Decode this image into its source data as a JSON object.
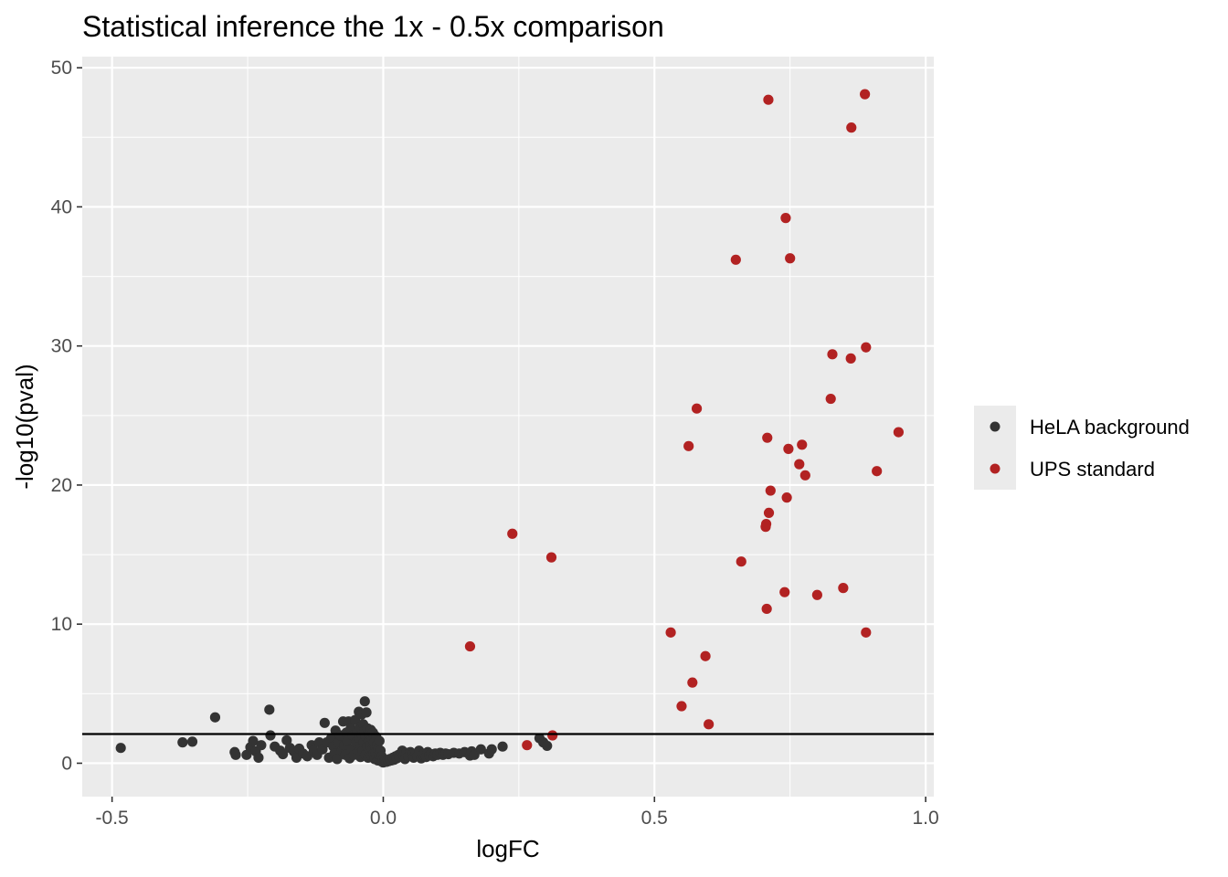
{
  "chart_data": {
    "type": "scatter",
    "title": "Statistical inference the 1x - 0.5x comparison",
    "xlabel": "logFC",
    "ylabel": "-log10(pval)",
    "xlim": [
      -0.555,
      1.015
    ],
    "ylim": [
      -2.4,
      50.8
    ],
    "x_ticks": [
      -0.5,
      0.0,
      0.5,
      1.0
    ],
    "x_tick_labels": [
      "-0.5",
      "0.0",
      "0.5",
      "1.0"
    ],
    "y_ticks": [
      0,
      10,
      20,
      30,
      40,
      50
    ],
    "y_tick_labels": [
      "0",
      "10",
      "20",
      "30",
      "40",
      "50"
    ],
    "grid": true,
    "panel_background": "#ebebeb",
    "legend_position": "right",
    "hline": 2.1,
    "series": [
      {
        "name": "HeLA background",
        "color": "#333333",
        "points": [
          [
            -0.484,
            1.1
          ],
          [
            -0.37,
            1.5
          ],
          [
            -0.352,
            1.55
          ],
          [
            -0.31,
            3.3
          ],
          [
            -0.274,
            0.8
          ],
          [
            -0.272,
            0.6
          ],
          [
            -0.252,
            0.6
          ],
          [
            -0.245,
            1.15
          ],
          [
            -0.24,
            1.6
          ],
          [
            -0.235,
            0.85
          ],
          [
            -0.23,
            0.4
          ],
          [
            -0.225,
            1.3
          ],
          [
            -0.21,
            3.85
          ],
          [
            -0.208,
            2.0
          ],
          [
            -0.2,
            1.2
          ],
          [
            -0.19,
            0.9
          ],
          [
            -0.185,
            0.65
          ],
          [
            -0.178,
            1.65
          ],
          [
            -0.172,
            1.1
          ],
          [
            -0.165,
            0.85
          ],
          [
            -0.16,
            0.4
          ],
          [
            -0.155,
            1.05
          ],
          [
            -0.148,
            0.7
          ],
          [
            -0.14,
            0.5
          ],
          [
            -0.132,
            1.3
          ],
          [
            -0.128,
            0.9
          ],
          [
            -0.122,
            0.6
          ],
          [
            -0.118,
            1.5
          ],
          [
            -0.112,
            1.0
          ],
          [
            -0.108,
            2.9
          ],
          [
            -0.104,
            1.5
          ],
          [
            -0.1,
            0.4
          ],
          [
            -0.096,
            1.8
          ],
          [
            -0.092,
            1.2
          ],
          [
            -0.09,
            0.7
          ],
          [
            -0.088,
            2.35
          ],
          [
            -0.085,
            0.3
          ],
          [
            -0.082,
            1.5
          ],
          [
            -0.079,
            2.0
          ],
          [
            -0.076,
            0.9
          ],
          [
            -0.074,
            3.0
          ],
          [
            -0.072,
            1.3
          ],
          [
            -0.07,
            0.6
          ],
          [
            -0.068,
            2.2
          ],
          [
            -0.066,
            1.6
          ],
          [
            -0.064,
            3.0
          ],
          [
            -0.062,
            0.35
          ],
          [
            -0.06,
            2.5
          ],
          [
            -0.058,
            1.0
          ],
          [
            -0.056,
            2.0
          ],
          [
            -0.054,
            0.6
          ],
          [
            -0.052,
            3.1
          ],
          [
            -0.05,
            1.5
          ],
          [
            -0.048,
            2.3
          ],
          [
            -0.046,
            0.8
          ],
          [
            -0.045,
            3.7
          ],
          [
            -0.044,
            1.8
          ],
          [
            -0.043,
            2.6
          ],
          [
            -0.042,
            0.45
          ],
          [
            -0.041,
            1.2
          ],
          [
            -0.04,
            3.5
          ],
          [
            -0.039,
            2.0
          ],
          [
            -0.038,
            0.9
          ],
          [
            -0.037,
            2.8
          ],
          [
            -0.036,
            1.5
          ],
          [
            -0.035,
            2.3
          ],
          [
            -0.034,
            4.45
          ],
          [
            -0.033,
            0.6
          ],
          [
            -0.032,
            1.9
          ],
          [
            -0.031,
            3.65
          ],
          [
            -0.03,
            1.2
          ],
          [
            -0.029,
            2.5
          ],
          [
            -0.028,
            0.4
          ],
          [
            -0.027,
            1.6
          ],
          [
            -0.026,
            2.1
          ],
          [
            -0.025,
            0.9
          ],
          [
            -0.024,
            1.3
          ],
          [
            -0.023,
            2.4
          ],
          [
            -0.022,
            0.55
          ],
          [
            -0.021,
            1.8
          ],
          [
            -0.02,
            1.0
          ],
          [
            -0.019,
            2.2
          ],
          [
            -0.018,
            0.7
          ],
          [
            -0.017,
            1.5
          ],
          [
            -0.016,
            0.3
          ],
          [
            -0.015,
            1.2
          ],
          [
            -0.014,
            0.8
          ],
          [
            -0.013,
            1.9
          ],
          [
            -0.012,
            0.5
          ],
          [
            -0.011,
            1.3
          ],
          [
            -0.01,
            0.2
          ],
          [
            -0.009,
            1.0
          ],
          [
            -0.008,
            0.6
          ],
          [
            -0.007,
            1.6
          ],
          [
            -0.006,
            0.3
          ],
          [
            -0.005,
            0.9
          ],
          [
            -0.004,
            0.15
          ],
          [
            -0.003,
            0.5
          ],
          [
            -0.002,
            0.1
          ],
          [
            -0.001,
            0.25
          ],
          [
            0.0,
            0.05
          ],
          [
            0.002,
            0.1
          ],
          [
            0.004,
            0.15
          ],
          [
            0.006,
            0.1
          ],
          [
            0.008,
            0.2
          ],
          [
            0.01,
            0.15
          ],
          [
            0.012,
            0.3
          ],
          [
            0.015,
            0.2
          ],
          [
            0.018,
            0.4
          ],
          [
            0.02,
            0.25
          ],
          [
            0.023,
            0.5
          ],
          [
            0.025,
            0.35
          ],
          [
            0.028,
            0.6
          ],
          [
            0.03,
            0.45
          ],
          [
            0.033,
            0.7
          ],
          [
            0.035,
            0.9
          ],
          [
            0.037,
            0.55
          ],
          [
            0.04,
            0.3
          ],
          [
            0.043,
            0.75
          ],
          [
            0.046,
            0.5
          ],
          [
            0.05,
            0.8
          ],
          [
            0.053,
            0.6
          ],
          [
            0.056,
            0.4
          ],
          [
            0.06,
            0.7
          ],
          [
            0.063,
            0.5
          ],
          [
            0.066,
            0.9
          ],
          [
            0.07,
            0.35
          ],
          [
            0.073,
            0.6
          ],
          [
            0.076,
            0.7
          ],
          [
            0.079,
            0.45
          ],
          [
            0.082,
            0.8
          ],
          [
            0.085,
            0.55
          ],
          [
            0.088,
            0.65
          ],
          [
            0.092,
            0.5
          ],
          [
            0.096,
            0.7
          ],
          [
            0.1,
            0.6
          ],
          [
            0.105,
            0.75
          ],
          [
            0.11,
            0.6
          ],
          [
            0.115,
            0.7
          ],
          [
            0.12,
            0.65
          ],
          [
            0.13,
            0.75
          ],
          [
            0.14,
            0.7
          ],
          [
            0.15,
            0.8
          ],
          [
            0.16,
            0.55
          ],
          [
            0.163,
            0.85
          ],
          [
            0.168,
            0.6
          ],
          [
            0.18,
            1.0
          ],
          [
            0.195,
            0.7
          ],
          [
            0.2,
            1.0
          ],
          [
            0.22,
            1.2
          ],
          [
            0.288,
            1.8
          ],
          [
            0.295,
            1.5
          ],
          [
            0.302,
            1.25
          ]
        ]
      },
      {
        "name": "UPS standard",
        "color": "#b22222",
        "points": [
          [
            0.16,
            8.4
          ],
          [
            0.238,
            16.5
          ],
          [
            0.265,
            1.3
          ],
          [
            0.31,
            14.8
          ],
          [
            0.312,
            2.0
          ],
          [
            0.53,
            9.4
          ],
          [
            0.55,
            4.1
          ],
          [
            0.563,
            22.8
          ],
          [
            0.57,
            5.8
          ],
          [
            0.578,
            25.5
          ],
          [
            0.594,
            7.7
          ],
          [
            0.6,
            2.8
          ],
          [
            0.65,
            36.2
          ],
          [
            0.66,
            14.5
          ],
          [
            0.705,
            17.0
          ],
          [
            0.706,
            17.2
          ],
          [
            0.707,
            11.1
          ],
          [
            0.708,
            23.4
          ],
          [
            0.71,
            47.7
          ],
          [
            0.711,
            18.0
          ],
          [
            0.714,
            19.6
          ],
          [
            0.74,
            12.3
          ],
          [
            0.742,
            39.2
          ],
          [
            0.744,
            19.1
          ],
          [
            0.747,
            22.6
          ],
          [
            0.75,
            36.3
          ],
          [
            0.767,
            21.5
          ],
          [
            0.772,
            22.9
          ],
          [
            0.778,
            20.7
          ],
          [
            0.8,
            12.1
          ],
          [
            0.825,
            26.2
          ],
          [
            0.828,
            29.4
          ],
          [
            0.848,
            12.6
          ],
          [
            0.862,
            29.1
          ],
          [
            0.863,
            45.7
          ],
          [
            0.888,
            48.1
          ],
          [
            0.89,
            29.9
          ],
          [
            0.89,
            9.4
          ],
          [
            0.91,
            21.0
          ],
          [
            0.95,
            23.8
          ]
        ]
      }
    ]
  }
}
